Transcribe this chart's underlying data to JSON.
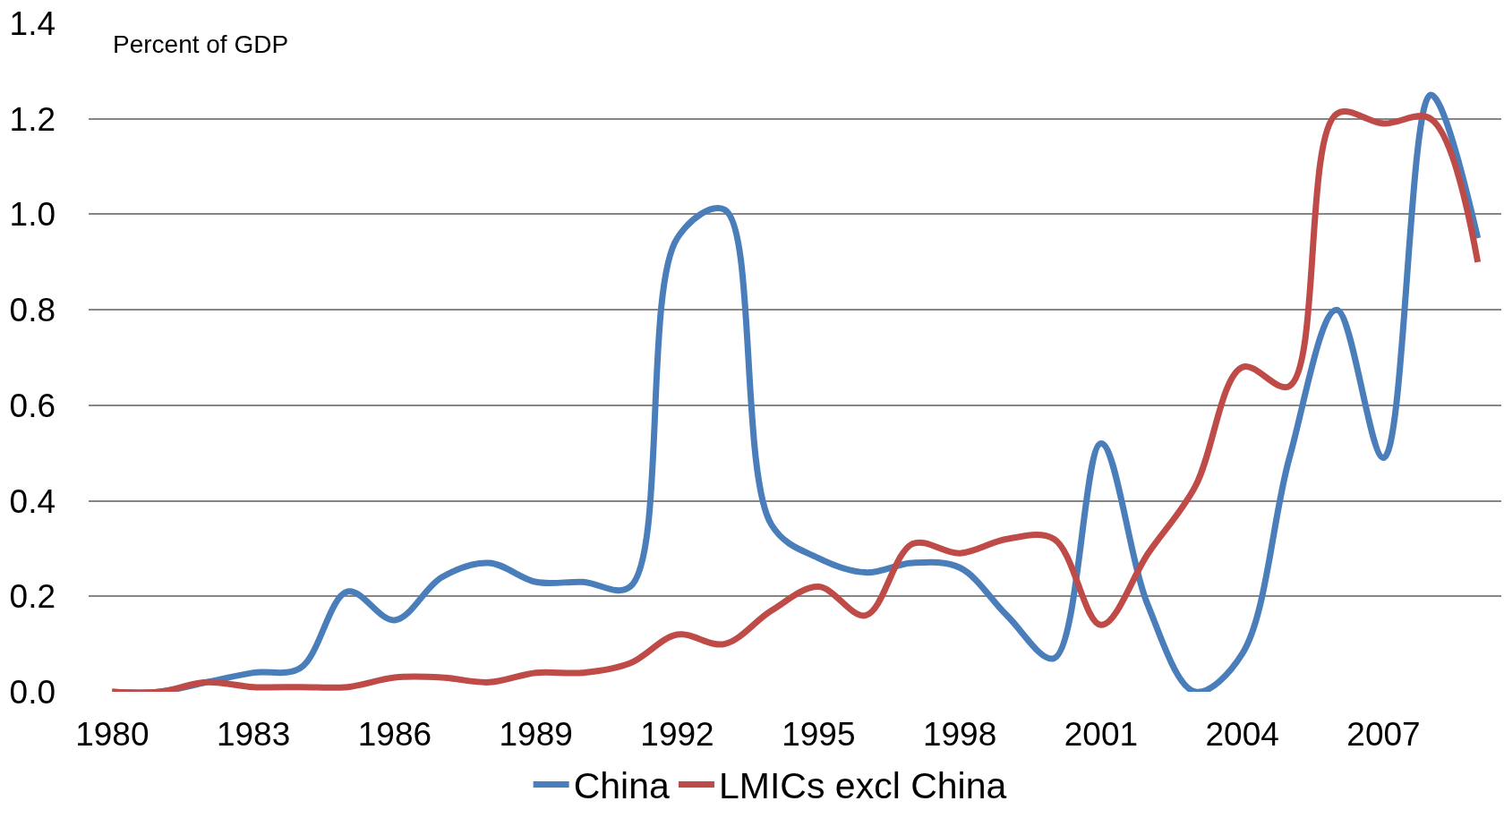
{
  "chart_data": {
    "type": "line",
    "ylabel": "Percent of GDP",
    "categories": [
      "1980",
      null,
      null,
      "1983",
      null,
      null,
      "1986",
      null,
      null,
      "1989",
      null,
      null,
      "1992",
      null,
      null,
      "1995",
      null,
      null,
      "1998",
      null,
      null,
      "2001",
      null,
      null,
      "2004",
      null,
      null,
      "2007",
      null,
      null
    ],
    "series": [
      {
        "name": "China",
        "color": "#4a7ebb",
        "values": [
          0.0,
          0.0,
          0.02,
          0.04,
          0.05,
          0.21,
          0.15,
          0.24,
          0.27,
          0.23,
          0.23,
          0.22,
          0.95,
          1.01,
          0.35,
          0.28,
          0.25,
          0.27,
          0.26,
          0.16,
          0.07,
          0.52,
          0.18,
          0.0,
          0.08,
          0.49,
          0.8,
          0.49,
          1.25,
          0.95
        ]
      },
      {
        "name": "LMICs excl China",
        "color": "#be4b48",
        "values": [
          0.0,
          0.0,
          0.02,
          0.01,
          0.01,
          0.01,
          0.03,
          0.03,
          0.02,
          0.04,
          0.04,
          0.06,
          0.12,
          0.1,
          0.17,
          0.22,
          0.16,
          0.31,
          0.29,
          0.32,
          0.32,
          0.14,
          0.29,
          0.43,
          0.68,
          0.64,
          1.21,
          1.19,
          1.2,
          0.9
        ]
      }
    ],
    "ylim": [
      0,
      1.4
    ],
    "yticks": [
      {
        "value": 0,
        "label": "0.0"
      },
      0.2,
      0.4,
      0.6,
      0.8,
      {
        "value": 1,
        "label": "1.0"
      },
      1.2,
      1.4
    ],
    "grid": "y",
    "legend": "bottom",
    "marker": "none",
    "line_style": "solid"
  }
}
